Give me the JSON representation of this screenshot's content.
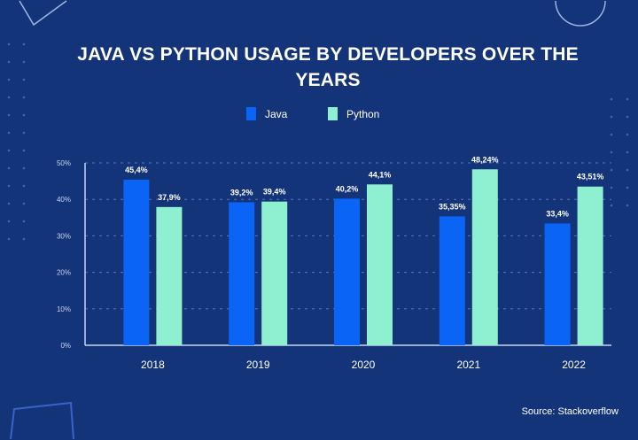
{
  "chart_data": {
    "type": "bar",
    "title": "JAVA VS PYTHON USAGE BY DEVELOPERS OVER THE YEARS",
    "categories": [
      "2018",
      "2019",
      "2020",
      "2021",
      "2022"
    ],
    "series": [
      {
        "name": "Java",
        "color": "#0a64f5",
        "values": [
          45.4,
          39.2,
          40.2,
          35.35,
          33.4
        ],
        "labels": [
          "45,4%",
          "39,2%",
          "40,2%",
          "35,35%",
          "33,4%"
        ]
      },
      {
        "name": "Python",
        "color": "#8ef0d0",
        "values": [
          37.9,
          39.4,
          44.1,
          48.24,
          43.51
        ],
        "labels": [
          "37,9%",
          "39,4%",
          "44,1%",
          "48,24%",
          "43,51%"
        ]
      }
    ],
    "yticks": [
      "0%",
      "10%",
      "20%",
      "30%",
      "40%",
      "50%"
    ],
    "ylim": [
      0,
      50
    ],
    "grid": true,
    "legend": "top-center",
    "source": "Source: Stackoverflow"
  }
}
